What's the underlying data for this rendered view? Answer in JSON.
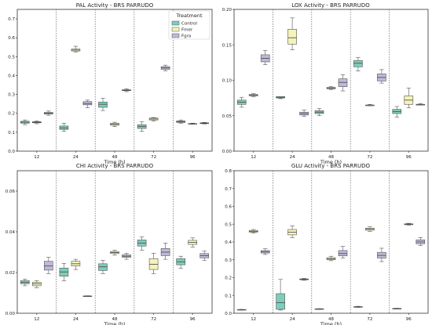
{
  "chart_data": [
    {
      "type": "box",
      "title": "PAL Activity - BRS PARRUDO",
      "xlabel": "Time (h)",
      "ylabel": "",
      "categories": [
        "12",
        "24",
        "48",
        "72",
        "96"
      ],
      "ylim": [
        0,
        0.75
      ],
      "yticks": [
        0.0,
        0.1,
        0.2,
        0.3,
        0.4,
        0.5,
        0.6,
        0.7
      ],
      "legend": {
        "title": "Treatment",
        "position": "top-right",
        "entries": [
          "Control",
          "Fmer",
          "Fgra"
        ]
      },
      "series": [
        {
          "name": "Control",
          "color": "#7ecdbb",
          "boxes": [
            {
              "min": 0.14,
              "q1": 0.148,
              "median": 0.153,
              "q3": 0.158,
              "max": 0.165
            },
            {
              "min": 0.105,
              "q1": 0.115,
              "median": 0.123,
              "q3": 0.133,
              "max": 0.148
            },
            {
              "min": 0.215,
              "q1": 0.232,
              "median": 0.248,
              "q3": 0.26,
              "max": 0.28
            },
            {
              "min": 0.105,
              "q1": 0.12,
              "median": 0.13,
              "q3": 0.14,
              "max": 0.155
            },
            {
              "min": 0.148,
              "q1": 0.152,
              "median": 0.156,
              "q3": 0.16,
              "max": 0.165
            }
          ]
        },
        {
          "name": "Fmer",
          "color": "#f3f3ba",
          "boxes": [
            {
              "min": 0.145,
              "q1": 0.15,
              "median": 0.153,
              "q3": 0.156,
              "max": 0.16
            },
            {
              "min": 0.525,
              "q1": 0.53,
              "median": 0.535,
              "q3": 0.54,
              "max": 0.555
            },
            {
              "min": 0.13,
              "q1": 0.137,
              "median": 0.142,
              "q3": 0.148,
              "max": 0.153
            },
            {
              "min": 0.16,
              "q1": 0.165,
              "median": 0.17,
              "q3": 0.175,
              "max": 0.178
            },
            {
              "min": 0.142,
              "q1": 0.144,
              "median": 0.145,
              "q3": 0.146,
              "max": 0.148
            }
          ]
        },
        {
          "name": "Fgra",
          "color": "#beb9da",
          "boxes": [
            {
              "min": 0.19,
              "q1": 0.196,
              "median": 0.2,
              "q3": 0.205,
              "max": 0.212
            },
            {
              "min": 0.23,
              "q1": 0.245,
              "median": 0.252,
              "q3": 0.262,
              "max": 0.27
            },
            {
              "min": 0.315,
              "q1": 0.32,
              "median": 0.322,
              "q3": 0.325,
              "max": 0.33
            },
            {
              "min": 0.425,
              "q1": 0.433,
              "median": 0.44,
              "q3": 0.447,
              "max": 0.455
            },
            {
              "min": 0.144,
              "q1": 0.146,
              "median": 0.148,
              "q3": 0.15,
              "max": 0.152
            }
          ]
        }
      ]
    },
    {
      "type": "box",
      "title": "LOX Activity - BRS PARRUDO",
      "xlabel": "Time (h)",
      "ylabel": "",
      "categories": [
        "12",
        "24",
        "48",
        "72",
        "96"
      ],
      "ylim": [
        0,
        0.2
      ],
      "yticks": [
        0.0,
        0.05,
        0.1,
        0.15,
        0.2
      ],
      "ytick_labels": [
        "0.00",
        "0.05",
        "0.10",
        "0.15",
        "0.20"
      ],
      "series": [
        {
          "name": "Control",
          "color": "#7ecdbb",
          "boxes": [
            {
              "min": 0.062,
              "q1": 0.066,
              "median": 0.069,
              "q3": 0.072,
              "max": 0.076
            },
            {
              "min": 0.074,
              "q1": 0.075,
              "median": 0.076,
              "q3": 0.077,
              "max": 0.077
            },
            {
              "min": 0.05,
              "q1": 0.053,
              "median": 0.055,
              "q3": 0.057,
              "max": 0.06
            },
            {
              "min": 0.113,
              "q1": 0.119,
              "median": 0.124,
              "q3": 0.128,
              "max": 0.132
            },
            {
              "min": 0.048,
              "q1": 0.053,
              "median": 0.056,
              "q3": 0.059,
              "max": 0.063
            }
          ]
        },
        {
          "name": "Fmer",
          "color": "#f3f3ba",
          "boxes": [
            {
              "min": 0.077,
              "q1": 0.078,
              "median": 0.079,
              "q3": 0.08,
              "max": 0.081
            },
            {
              "min": 0.143,
              "q1": 0.151,
              "median": 0.16,
              "q3": 0.172,
              "max": 0.188
            },
            {
              "min": 0.087,
              "q1": 0.088,
              "median": 0.089,
              "q3": 0.09,
              "max": 0.091
            },
            {
              "min": 0.064,
              "q1": 0.064,
              "median": 0.065,
              "q3": 0.065,
              "max": 0.066
            },
            {
              "min": 0.061,
              "q1": 0.066,
              "median": 0.072,
              "q3": 0.078,
              "max": 0.089
            }
          ]
        },
        {
          "name": "Fgra",
          "color": "#beb9da",
          "boxes": [
            {
              "min": 0.122,
              "q1": 0.126,
              "median": 0.131,
              "q3": 0.136,
              "max": 0.142
            },
            {
              "min": 0.049,
              "q1": 0.051,
              "median": 0.053,
              "q3": 0.055,
              "max": 0.058
            },
            {
              "min": 0.085,
              "q1": 0.091,
              "median": 0.097,
              "q3": 0.102,
              "max": 0.108
            },
            {
              "min": 0.096,
              "q1": 0.099,
              "median": 0.104,
              "q3": 0.109,
              "max": 0.115
            },
            {
              "min": 0.065,
              "q1": 0.065,
              "median": 0.066,
              "q3": 0.066,
              "max": 0.067
            }
          ]
        }
      ]
    },
    {
      "type": "box",
      "title": "CHI Activity - BRS PARRUDO",
      "xlabel": "Time (h)",
      "ylabel": "",
      "categories": [
        "12",
        "24",
        "48",
        "72",
        "96"
      ],
      "ylim": [
        0,
        0.07
      ],
      "yticks": [
        0.0,
        0.02,
        0.04,
        0.06
      ],
      "ytick_labels": [
        "0.00",
        "0.02",
        "0.04",
        "0.06"
      ],
      "series": [
        {
          "name": "Control",
          "color": "#7ecdbb",
          "boxes": [
            {
              "min": 0.0135,
              "q1": 0.0145,
              "median": 0.0152,
              "q3": 0.016,
              "max": 0.0168
            },
            {
              "min": 0.016,
              "q1": 0.0182,
              "median": 0.0203,
              "q3": 0.0222,
              "max": 0.0245
            },
            {
              "min": 0.0195,
              "q1": 0.021,
              "median": 0.0228,
              "q3": 0.0243,
              "max": 0.026
            },
            {
              "min": 0.031,
              "q1": 0.033,
              "median": 0.0345,
              "q3": 0.036,
              "max": 0.0375
            },
            {
              "min": 0.022,
              "q1": 0.0238,
              "median": 0.0253,
              "q3": 0.0268,
              "max": 0.028
            }
          ]
        },
        {
          "name": "Fmer",
          "color": "#f3f3ba",
          "boxes": [
            {
              "min": 0.0125,
              "q1": 0.0135,
              "median": 0.0145,
              "q3": 0.0152,
              "max": 0.016
            },
            {
              "min": 0.0215,
              "q1": 0.0232,
              "median": 0.0243,
              "q3": 0.0255,
              "max": 0.0265
            },
            {
              "min": 0.0285,
              "q1": 0.0293,
              "median": 0.0298,
              "q3": 0.0303,
              "max": 0.031
            },
            {
              "min": 0.0195,
              "q1": 0.0215,
              "median": 0.024,
              "q3": 0.0268,
              "max": 0.0295
            },
            {
              "min": 0.0325,
              "q1": 0.0338,
              "median": 0.0348,
              "q3": 0.0358,
              "max": 0.037
            }
          ]
        },
        {
          "name": "Fgra",
          "color": "#beb9da",
          "boxes": [
            {
              "min": 0.0195,
              "q1": 0.0212,
              "median": 0.0232,
              "q3": 0.0255,
              "max": 0.0275
            },
            {
              "min": 0.0082,
              "q1": 0.0083,
              "median": 0.0084,
              "q3": 0.0085,
              "max": 0.0086
            },
            {
              "min": 0.0265,
              "q1": 0.0275,
              "median": 0.028,
              "q3": 0.0287,
              "max": 0.0295
            },
            {
              "min": 0.0265,
              "q1": 0.0283,
              "median": 0.03,
              "q3": 0.0318,
              "max": 0.0345
            },
            {
              "min": 0.026,
              "q1": 0.0272,
              "median": 0.0283,
              "q3": 0.0293,
              "max": 0.0305
            }
          ]
        }
      ]
    },
    {
      "type": "box",
      "title": "GLU Activity - BRS PARRUDO",
      "xlabel": "Time (h)",
      "ylabel": "",
      "categories": [
        "12",
        "24",
        "48",
        "72",
        "96"
      ],
      "ylim": [
        0,
        0.8
      ],
      "yticks": [
        0.0,
        0.1,
        0.2,
        0.3,
        0.4,
        0.5,
        0.6,
        0.7,
        0.8
      ],
      "series": [
        {
          "name": "Control",
          "color": "#7ecdbb",
          "boxes": [
            {
              "min": 0.018,
              "q1": 0.019,
              "median": 0.02,
              "q3": 0.021,
              "max": 0.022
            },
            {
              "min": 0.018,
              "q1": 0.022,
              "median": 0.06,
              "q3": 0.11,
              "max": 0.19
            },
            {
              "min": 0.022,
              "q1": 0.023,
              "median": 0.024,
              "q3": 0.025,
              "max": 0.026
            },
            {
              "min": 0.033,
              "q1": 0.035,
              "median": 0.036,
              "q3": 0.037,
              "max": 0.039
            },
            {
              "min": 0.024,
              "q1": 0.025,
              "median": 0.026,
              "q3": 0.027,
              "max": 0.028
            }
          ]
        },
        {
          "name": "Fmer",
          "color": "#f3f3ba",
          "boxes": [
            {
              "min": 0.45,
              "q1": 0.455,
              "median": 0.46,
              "q3": 0.465,
              "max": 0.47
            },
            {
              "min": 0.425,
              "q1": 0.44,
              "median": 0.455,
              "q3": 0.47,
              "max": 0.49
            },
            {
              "min": 0.295,
              "q1": 0.3,
              "median": 0.305,
              "q3": 0.312,
              "max": 0.32
            },
            {
              "min": 0.46,
              "q1": 0.466,
              "median": 0.472,
              "q3": 0.478,
              "max": 0.485
            },
            {
              "min": 0.495,
              "q1": 0.497,
              "median": 0.5,
              "q3": 0.502,
              "max": 0.505
            }
          ]
        },
        {
          "name": "Fgra",
          "color": "#beb9da",
          "boxes": [
            {
              "min": 0.33,
              "q1": 0.338,
              "median": 0.345,
              "q3": 0.352,
              "max": 0.362
            },
            {
              "min": 0.185,
              "q1": 0.188,
              "median": 0.19,
              "q3": 0.193,
              "max": 0.196
            },
            {
              "min": 0.31,
              "q1": 0.322,
              "median": 0.335,
              "q3": 0.352,
              "max": 0.375
            },
            {
              "min": 0.29,
              "q1": 0.31,
              "median": 0.325,
              "q3": 0.342,
              "max": 0.365
            },
            {
              "min": 0.38,
              "q1": 0.39,
              "median": 0.4,
              "q3": 0.412,
              "max": 0.425
            }
          ]
        }
      ]
    }
  ]
}
